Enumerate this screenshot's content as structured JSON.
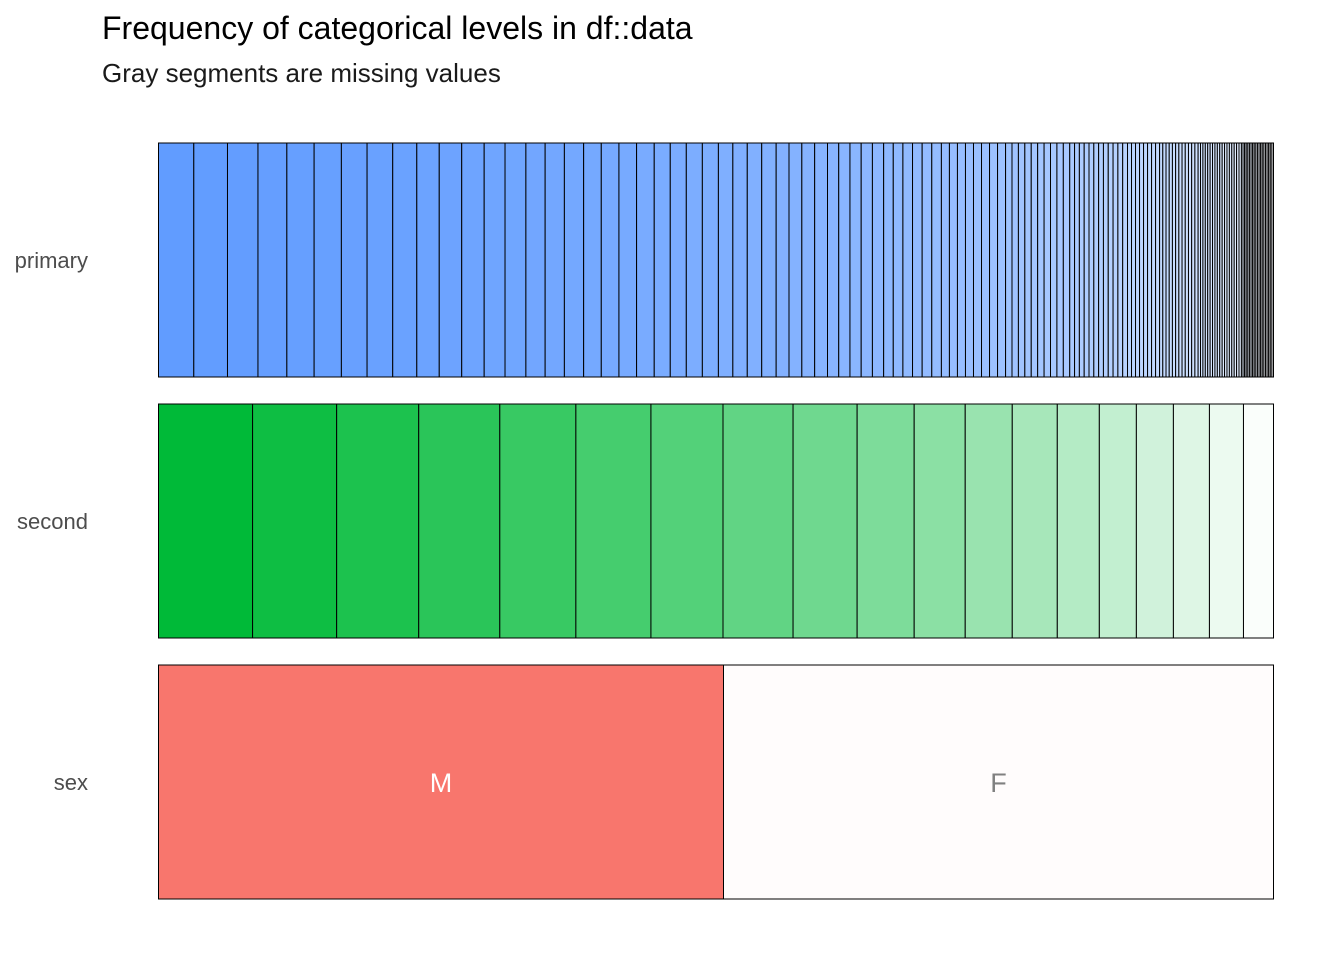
{
  "title": "Frequency of categorical levels in df::data",
  "subtitle": "Gray segments are missing values",
  "chart_data": {
    "type": "bar",
    "orientation": "horizontal-stacked-proportion",
    "rows": [
      {
        "name": "primary",
        "color": "#619CFF",
        "values": [
          22,
          21,
          19,
          18,
          17,
          17,
          16,
          16,
          15,
          14,
          14,
          14,
          13,
          13,
          12,
          12,
          12,
          11,
          11,
          11,
          11,
          10,
          10,
          10,
          10,
          9,
          9,
          9,
          9,
          8,
          8,
          8,
          8,
          7,
          7,
          7,
          7,
          7,
          6,
          6,
          6,
          6,
          6,
          6,
          5,
          5,
          5,
          5,
          5,
          5,
          5,
          5,
          4,
          4,
          4,
          4,
          4,
          4,
          4,
          4,
          4,
          4,
          3,
          3,
          3,
          3,
          3,
          3,
          3,
          3,
          3,
          3,
          3,
          3,
          2.5,
          2.5,
          2.5,
          2.5,
          2.5,
          2.5,
          2.5,
          2.5,
          2,
          2,
          2,
          2,
          2,
          2,
          2,
          2,
          2,
          2,
          2,
          2,
          1.5,
          1.5,
          1.5,
          1.5,
          1.5,
          1.5,
          1.5,
          1.5,
          1.5,
          1.5,
          1.5,
          1.5,
          1.5,
          1.5,
          1.5,
          1.5,
          1.5,
          1.5,
          1,
          1,
          1,
          1,
          1,
          1,
          1,
          1,
          1,
          1,
          1,
          1,
          1,
          1,
          1,
          1,
          1,
          1,
          1,
          1
        ],
        "labels": []
      },
      {
        "name": "second",
        "color": "#00BA38",
        "values": [
          94,
          84,
          82,
          81,
          76,
          75,
          72,
          70,
          64,
          57,
          51,
          47,
          45,
          42,
          37,
          37,
          36,
          34,
          30
        ],
        "labels": []
      },
      {
        "name": "sex",
        "color": "#F8766D",
        "values": [
          565,
          550
        ],
        "labels": [
          "M",
          "F"
        ]
      }
    ]
  }
}
